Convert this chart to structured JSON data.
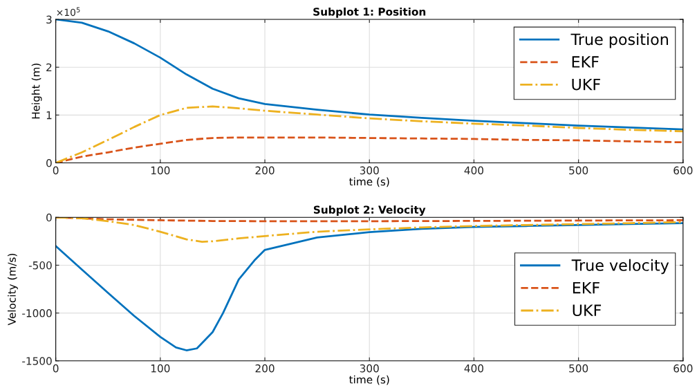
{
  "chart_data": [
    {
      "type": "line",
      "title": "Subplot 1: Position",
      "xlabel": "time (s)",
      "ylabel": "Height (m)",
      "annotations": [
        "×10$^{5}$"
      ],
      "xlim": [
        0,
        600
      ],
      "xticks": [
        0,
        100,
        200,
        300,
        400,
        500,
        600
      ],
      "ylim": [
        0,
        3
      ],
      "yticks": [
        0,
        1,
        2,
        3
      ],
      "grid": true,
      "legend": "top right",
      "series": [
        {
          "name": "True position",
          "color": "#0072bd",
          "line_style": "solid",
          "x": [
            0,
            25,
            50,
            75,
            100,
            125,
            150,
            175,
            200,
            250,
            300,
            350,
            400,
            450,
            500,
            550,
            600
          ],
          "values": [
            3.0,
            2.93,
            2.75,
            2.5,
            2.2,
            1.85,
            1.55,
            1.35,
            1.23,
            1.11,
            1.01,
            0.94,
            0.88,
            0.83,
            0.78,
            0.74,
            0.7
          ]
        },
        {
          "name": "EKF",
          "color": "#d95319",
          "line_style": "dashed",
          "x": [
            0,
            25,
            50,
            75,
            100,
            125,
            150,
            175,
            200,
            250,
            300,
            350,
            400,
            450,
            500,
            550,
            600
          ],
          "values": [
            0,
            0.13,
            0.22,
            0.32,
            0.4,
            0.48,
            0.52,
            0.53,
            0.53,
            0.53,
            0.52,
            0.51,
            0.5,
            0.48,
            0.47,
            0.45,
            0.43
          ]
        },
        {
          "name": "UKF",
          "color": "#edb120",
          "line_style": "dashdot",
          "x": [
            0,
            25,
            50,
            75,
            100,
            125,
            150,
            175,
            200,
            250,
            300,
            350,
            400,
            450,
            500,
            550,
            600
          ],
          "values": [
            0,
            0.22,
            0.48,
            0.75,
            1.0,
            1.15,
            1.18,
            1.14,
            1.09,
            1.01,
            0.93,
            0.87,
            0.82,
            0.78,
            0.73,
            0.69,
            0.66
          ]
        }
      ]
    },
    {
      "type": "line",
      "title": "Subplot 2: Velocity",
      "xlabel": "time (s)",
      "ylabel": "Velocity (m/s)",
      "xlim": [
        0,
        600
      ],
      "xticks": [
        0,
        100,
        200,
        300,
        400,
        500,
        600
      ],
      "ylim": [
        -1500,
        0
      ],
      "yticks": [
        -1500,
        -1000,
        -500,
        0
      ],
      "grid": true,
      "legend": "right",
      "series": [
        {
          "name": "True velocity",
          "color": "#0072bd",
          "line_style": "solid",
          "x": [
            0,
            25,
            50,
            75,
            100,
            115,
            125,
            135,
            150,
            160,
            175,
            190,
            200,
            250,
            300,
            350,
            400,
            450,
            500,
            550,
            600
          ],
          "values": [
            -300,
            -545,
            -790,
            -1030,
            -1250,
            -1360,
            -1390,
            -1370,
            -1200,
            -1000,
            -650,
            -450,
            -340,
            -210,
            -155,
            -120,
            -100,
            -90,
            -80,
            -70,
            -60
          ]
        },
        {
          "name": "EKF",
          "color": "#d95319",
          "line_style": "dashed",
          "x": [
            0,
            25,
            50,
            100,
            150,
            200,
            300,
            400,
            500,
            600
          ],
          "values": [
            0,
            -10,
            -20,
            -30,
            -38,
            -40,
            -40,
            -37,
            -33,
            -30
          ]
        },
        {
          "name": "UKF",
          "color": "#edb120",
          "line_style": "dashdot",
          "x": [
            0,
            25,
            50,
            75,
            100,
            125,
            140,
            150,
            175,
            200,
            250,
            300,
            350,
            400,
            450,
            500,
            550,
            600
          ],
          "values": [
            0,
            -10,
            -40,
            -80,
            -150,
            -230,
            -255,
            -250,
            -220,
            -195,
            -150,
            -125,
            -105,
            -90,
            -80,
            -70,
            -60,
            -50
          ]
        }
      ]
    }
  ]
}
